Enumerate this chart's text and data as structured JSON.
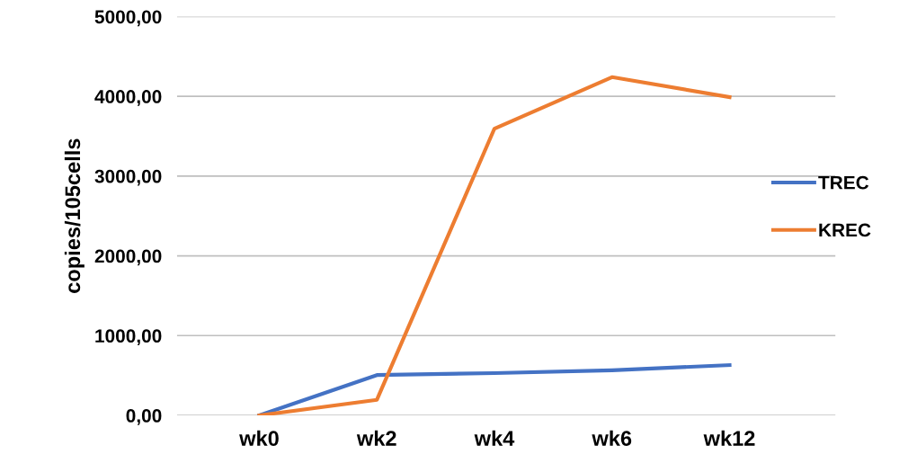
{
  "chart_data": {
    "type": "line",
    "ylabel": "copies/105cells",
    "categories": [
      "wk0",
      "wk2",
      "wk4",
      "wk6",
      "wk12"
    ],
    "series": [
      {
        "name": "TREC",
        "color": "#4472c4",
        "values": [
          0,
          505,
          530,
          565,
          630
        ]
      },
      {
        "name": "KREC",
        "color": "#ed7d31",
        "values": [
          0,
          195,
          3595,
          4240,
          3990
        ]
      }
    ],
    "ylim": [
      0,
      5000
    ],
    "yticks": [
      {
        "value": 0,
        "label": "0,00"
      },
      {
        "value": 1000,
        "label": "1000,00"
      },
      {
        "value": 2000,
        "label": "2000,00"
      },
      {
        "value": 3000,
        "label": "3000,00"
      },
      {
        "value": 4000,
        "label": "4000,00"
      },
      {
        "value": 5000,
        "label": "5000,00"
      }
    ],
    "grid": "y",
    "legend": "right",
    "marker": "none",
    "line_style": "solid"
  }
}
